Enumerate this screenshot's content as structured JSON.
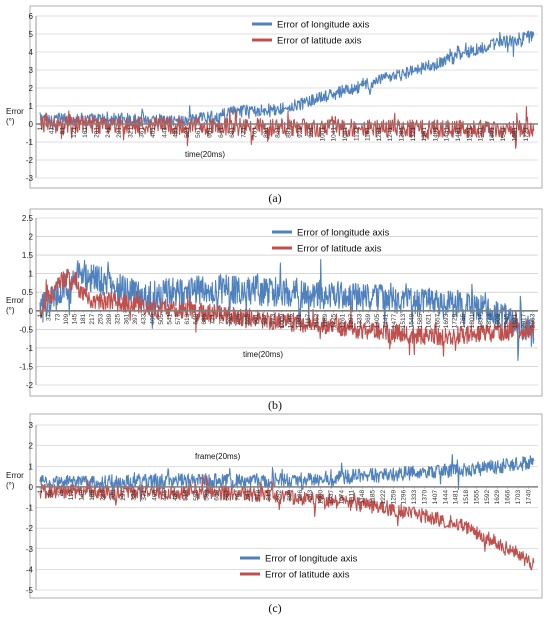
{
  "figure": {
    "captions": [
      "(a)",
      "(b)",
      "(c)"
    ]
  },
  "colors": {
    "longitude": "#4F81BD",
    "latitude": "#C0504D",
    "grid": "#BFBFBF",
    "axis": "#808080"
  },
  "chart_data": [
    {
      "type": "line",
      "title": "",
      "ylabel": "Error\n(°)",
      "xlabel": "time(20ms)",
      "ylim": [
        -3,
        6
      ],
      "yticks": [
        -3,
        -2,
        -1,
        0,
        1,
        2,
        3,
        4,
        5,
        6
      ],
      "x_ticklabels": [
        "1",
        "41",
        "81",
        "121",
        "161",
        "201",
        "241",
        "281",
        "321",
        "361",
        "401",
        "441",
        "481",
        "521",
        "561",
        "601",
        "641",
        "681",
        "721",
        "761",
        "801",
        "841",
        "881",
        "921",
        "961",
        "1001",
        "1041",
        "1081",
        "1121",
        "1161",
        "1201",
        "1241",
        "1281",
        "1321",
        "1361",
        "1401",
        "1441",
        "1481",
        "1521",
        "1561",
        "1601",
        "1641",
        "1681",
        "1721"
      ],
      "n_points": 1750,
      "series": [
        {
          "name": "Error of longitude axis",
          "profile": [
            [
              0,
              0.3
            ],
            [
              0.3,
              0.2
            ],
            [
              0.4,
              0.7
            ],
            [
              0.5,
              0.9
            ],
            [
              0.6,
              1.7
            ],
            [
              0.7,
              2.5
            ],
            [
              0.8,
              3.3
            ],
            [
              0.9,
              4.3
            ],
            [
              1.0,
              4.9
            ]
          ],
          "noise": 0.35
        },
        {
          "name": "Error of latitude axis",
          "profile": [
            [
              0,
              0.0
            ],
            [
              0.5,
              -0.2
            ],
            [
              1.0,
              -0.3
            ]
          ],
          "noise": 0.5
        }
      ],
      "legend_position": "top-right"
    },
    {
      "type": "line",
      "title": "",
      "ylabel": "Error\n(°)",
      "xlabel": "time(20ms)",
      "ylim": [
        -2,
        2.5
      ],
      "yticks": [
        -2,
        -1.5,
        -1,
        -0.5,
        0,
        0.5,
        1,
        1.5,
        2,
        2.5
      ],
      "x_ticklabels": [
        "1",
        "37",
        "73",
        "109",
        "145",
        "181",
        "217",
        "253",
        "289",
        "325",
        "361",
        "397",
        "433",
        "469",
        "505",
        "541",
        "577",
        "613",
        "649",
        "685",
        "721",
        "757",
        "793",
        "829",
        "865",
        "901",
        "937",
        "973",
        "1009",
        "1045",
        "1081",
        "1117",
        "1153",
        "1189",
        "1225",
        "1261",
        "1297",
        "1333",
        "1369",
        "1405",
        "1441",
        "1477",
        "1513",
        "1549",
        "1585",
        "1621",
        "1657",
        "1693",
        "1729",
        "1765",
        "1801",
        "1837",
        "1873",
        "1909",
        "1945",
        "1981",
        "2017",
        "2053"
      ],
      "n_points": 2060,
      "series": [
        {
          "name": "Error of longitude axis",
          "profile": [
            [
              0,
              0.0
            ],
            [
              0.08,
              1.0
            ],
            [
              0.2,
              0.4
            ],
            [
              0.35,
              0.6
            ],
            [
              0.5,
              0.5
            ],
            [
              0.7,
              0.3
            ],
            [
              0.9,
              0.1
            ],
            [
              1.0,
              -0.6
            ]
          ],
          "noise": 0.4
        },
        {
          "name": "Error of latitude axis",
          "profile": [
            [
              0,
              0.0
            ],
            [
              0.05,
              0.9
            ],
            [
              0.1,
              0.3
            ],
            [
              0.3,
              0.0
            ],
            [
              0.5,
              -0.3
            ],
            [
              0.8,
              -0.7
            ],
            [
              1.0,
              -0.5
            ]
          ],
          "noise": 0.25
        }
      ],
      "legend_position": "top-right"
    },
    {
      "type": "line",
      "title": "frame(20ms)",
      "ylabel": "Error\n(°)",
      "xlabel": "",
      "ylim": [
        -5,
        3
      ],
      "yticks": [
        -5,
        -4,
        -3,
        -2,
        -1,
        0,
        1,
        2,
        3
      ],
      "x_ticklabels": [
        "1",
        "38",
        "75",
        "112",
        "149",
        "186",
        "223",
        "260",
        "297",
        "334",
        "371",
        "408",
        "445",
        "482",
        "519",
        "556",
        "593",
        "630",
        "667",
        "704",
        "741",
        "778",
        "815",
        "852",
        "889",
        "926",
        "963",
        "1000",
        "1037",
        "1074",
        "1111",
        "1148",
        "1185",
        "1222",
        "1259",
        "1296",
        "1333",
        "1370",
        "1407",
        "1444",
        "1481",
        "1518",
        "1555",
        "1592",
        "1629",
        "1666",
        "1703",
        "1740"
      ],
      "n_points": 1760,
      "series": [
        {
          "name": "Error of longitude axis",
          "profile": [
            [
              0,
              0.2
            ],
            [
              0.3,
              0.3
            ],
            [
              0.5,
              0.3
            ],
            [
              0.7,
              0.6
            ],
            [
              0.9,
              0.9
            ],
            [
              1.0,
              1.2
            ]
          ],
          "noise": 0.35
        },
        {
          "name": "Error of latitude axis",
          "profile": [
            [
              0,
              -0.2
            ],
            [
              0.4,
              -0.3
            ],
            [
              0.55,
              -0.6
            ],
            [
              0.7,
              -1.0
            ],
            [
              0.85,
              -1.8
            ],
            [
              0.95,
              -3.0
            ],
            [
              1.0,
              -3.8
            ]
          ],
          "noise": 0.35
        }
      ],
      "legend_position": "bottom-center"
    }
  ]
}
